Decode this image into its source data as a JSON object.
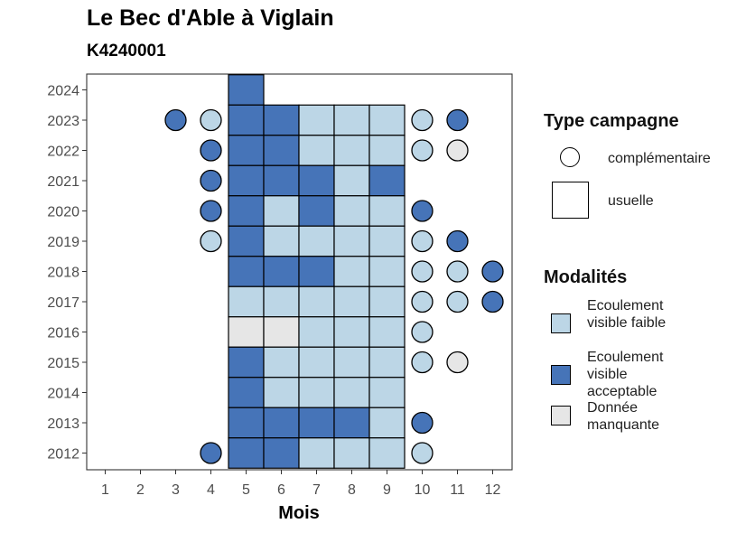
{
  "chart_data": {
    "type": "heatmap",
    "title": "Le Bec d'Able à Viglain",
    "subtitle": "K4240001",
    "xlabel": "Mois",
    "ylabel": "",
    "x_ticks": [
      "1",
      "2",
      "3",
      "4",
      "5",
      "6",
      "7",
      "8",
      "9",
      "10",
      "11",
      "12"
    ],
    "y_ticks": [
      "2012",
      "2013",
      "2014",
      "2015",
      "2016",
      "2017",
      "2018",
      "2019",
      "2020",
      "2021",
      "2022",
      "2023",
      "2024"
    ],
    "colors": {
      "faible": "#bcd6e6",
      "acceptable": "#4674b8",
      "manquante": "#e6e6e6"
    },
    "legend_shape": {
      "title": "Type campagne",
      "items": [
        {
          "key": "complementaire",
          "label": "complémentaire",
          "shape": "circle"
        },
        {
          "key": "usuelle",
          "label": "usuelle",
          "shape": "square"
        }
      ]
    },
    "legend_fill": {
      "title": "Modalités",
      "items": [
        {
          "key": "faible",
          "label": "Ecoulement visible faible"
        },
        {
          "key": "acceptable",
          "label": "Ecoulement visible acceptable"
        },
        {
          "key": "manquante",
          "label": "Donnée manquante"
        }
      ]
    },
    "points": [
      {
        "year": 2024,
        "month": 5,
        "type": "usuelle",
        "value": "acceptable"
      },
      {
        "year": 2023,
        "month": 3,
        "type": "complementaire",
        "value": "acceptable"
      },
      {
        "year": 2023,
        "month": 4,
        "type": "complementaire",
        "value": "faible"
      },
      {
        "year": 2023,
        "month": 5,
        "type": "usuelle",
        "value": "acceptable"
      },
      {
        "year": 2023,
        "month": 6,
        "type": "usuelle",
        "value": "acceptable"
      },
      {
        "year": 2023,
        "month": 7,
        "type": "usuelle",
        "value": "faible"
      },
      {
        "year": 2023,
        "month": 8,
        "type": "usuelle",
        "value": "faible"
      },
      {
        "year": 2023,
        "month": 9,
        "type": "usuelle",
        "value": "faible"
      },
      {
        "year": 2023,
        "month": 10,
        "type": "complementaire",
        "value": "faible"
      },
      {
        "year": 2023,
        "month": 11,
        "type": "complementaire",
        "value": "acceptable"
      },
      {
        "year": 2022,
        "month": 4,
        "type": "complementaire",
        "value": "acceptable"
      },
      {
        "year": 2022,
        "month": 5,
        "type": "usuelle",
        "value": "acceptable"
      },
      {
        "year": 2022,
        "month": 6,
        "type": "usuelle",
        "value": "acceptable"
      },
      {
        "year": 2022,
        "month": 7,
        "type": "usuelle",
        "value": "faible"
      },
      {
        "year": 2022,
        "month": 8,
        "type": "usuelle",
        "value": "faible"
      },
      {
        "year": 2022,
        "month": 9,
        "type": "usuelle",
        "value": "faible"
      },
      {
        "year": 2022,
        "month": 10,
        "type": "complementaire",
        "value": "faible"
      },
      {
        "year": 2022,
        "month": 11,
        "type": "complementaire",
        "value": "manquante"
      },
      {
        "year": 2021,
        "month": 4,
        "type": "complementaire",
        "value": "acceptable"
      },
      {
        "year": 2021,
        "month": 5,
        "type": "usuelle",
        "value": "acceptable"
      },
      {
        "year": 2021,
        "month": 6,
        "type": "usuelle",
        "value": "acceptable"
      },
      {
        "year": 2021,
        "month": 7,
        "type": "usuelle",
        "value": "acceptable"
      },
      {
        "year": 2021,
        "month": 8,
        "type": "usuelle",
        "value": "faible"
      },
      {
        "year": 2021,
        "month": 9,
        "type": "usuelle",
        "value": "acceptable"
      },
      {
        "year": 2020,
        "month": 4,
        "type": "complementaire",
        "value": "acceptable"
      },
      {
        "year": 2020,
        "month": 5,
        "type": "usuelle",
        "value": "acceptable"
      },
      {
        "year": 2020,
        "month": 6,
        "type": "usuelle",
        "value": "faible"
      },
      {
        "year": 2020,
        "month": 7,
        "type": "usuelle",
        "value": "acceptable"
      },
      {
        "year": 2020,
        "month": 8,
        "type": "usuelle",
        "value": "faible"
      },
      {
        "year": 2020,
        "month": 9,
        "type": "usuelle",
        "value": "faible"
      },
      {
        "year": 2020,
        "month": 10,
        "type": "complementaire",
        "value": "acceptable"
      },
      {
        "year": 2019,
        "month": 4,
        "type": "complementaire",
        "value": "faible"
      },
      {
        "year": 2019,
        "month": 5,
        "type": "usuelle",
        "value": "acceptable"
      },
      {
        "year": 2019,
        "month": 6,
        "type": "usuelle",
        "value": "faible"
      },
      {
        "year": 2019,
        "month": 7,
        "type": "usuelle",
        "value": "faible"
      },
      {
        "year": 2019,
        "month": 8,
        "type": "usuelle",
        "value": "faible"
      },
      {
        "year": 2019,
        "month": 9,
        "type": "usuelle",
        "value": "faible"
      },
      {
        "year": 2019,
        "month": 10,
        "type": "complementaire",
        "value": "faible"
      },
      {
        "year": 2019,
        "month": 11,
        "type": "complementaire",
        "value": "acceptable"
      },
      {
        "year": 2018,
        "month": 5,
        "type": "usuelle",
        "value": "acceptable"
      },
      {
        "year": 2018,
        "month": 6,
        "type": "usuelle",
        "value": "acceptable"
      },
      {
        "year": 2018,
        "month": 7,
        "type": "usuelle",
        "value": "acceptable"
      },
      {
        "year": 2018,
        "month": 8,
        "type": "usuelle",
        "value": "faible"
      },
      {
        "year": 2018,
        "month": 9,
        "type": "usuelle",
        "value": "faible"
      },
      {
        "year": 2018,
        "month": 10,
        "type": "complementaire",
        "value": "faible"
      },
      {
        "year": 2018,
        "month": 11,
        "type": "complementaire",
        "value": "faible"
      },
      {
        "year": 2018,
        "month": 12,
        "type": "complementaire",
        "value": "acceptable"
      },
      {
        "year": 2017,
        "month": 5,
        "type": "usuelle",
        "value": "faible"
      },
      {
        "year": 2017,
        "month": 6,
        "type": "usuelle",
        "value": "faible"
      },
      {
        "year": 2017,
        "month": 7,
        "type": "usuelle",
        "value": "faible"
      },
      {
        "year": 2017,
        "month": 8,
        "type": "usuelle",
        "value": "faible"
      },
      {
        "year": 2017,
        "month": 9,
        "type": "usuelle",
        "value": "faible"
      },
      {
        "year": 2017,
        "month": 10,
        "type": "complementaire",
        "value": "faible"
      },
      {
        "year": 2017,
        "month": 11,
        "type": "complementaire",
        "value": "faible"
      },
      {
        "year": 2017,
        "month": 12,
        "type": "complementaire",
        "value": "acceptable"
      },
      {
        "year": 2016,
        "month": 5,
        "type": "usuelle",
        "value": "manquante"
      },
      {
        "year": 2016,
        "month": 6,
        "type": "usuelle",
        "value": "manquante"
      },
      {
        "year": 2016,
        "month": 7,
        "type": "usuelle",
        "value": "faible"
      },
      {
        "year": 2016,
        "month": 8,
        "type": "usuelle",
        "value": "faible"
      },
      {
        "year": 2016,
        "month": 9,
        "type": "usuelle",
        "value": "faible"
      },
      {
        "year": 2016,
        "month": 10,
        "type": "complementaire",
        "value": "faible"
      },
      {
        "year": 2015,
        "month": 5,
        "type": "usuelle",
        "value": "acceptable"
      },
      {
        "year": 2015,
        "month": 6,
        "type": "usuelle",
        "value": "faible"
      },
      {
        "year": 2015,
        "month": 7,
        "type": "usuelle",
        "value": "faible"
      },
      {
        "year": 2015,
        "month": 8,
        "type": "usuelle",
        "value": "faible"
      },
      {
        "year": 2015,
        "month": 9,
        "type": "usuelle",
        "value": "faible"
      },
      {
        "year": 2015,
        "month": 10,
        "type": "complementaire",
        "value": "faible"
      },
      {
        "year": 2015,
        "month": 11,
        "type": "complementaire",
        "value": "manquante"
      },
      {
        "year": 2014,
        "month": 5,
        "type": "usuelle",
        "value": "acceptable"
      },
      {
        "year": 2014,
        "month": 6,
        "type": "usuelle",
        "value": "faible"
      },
      {
        "year": 2014,
        "month": 7,
        "type": "usuelle",
        "value": "faible"
      },
      {
        "year": 2014,
        "month": 8,
        "type": "usuelle",
        "value": "faible"
      },
      {
        "year": 2014,
        "month": 9,
        "type": "usuelle",
        "value": "faible"
      },
      {
        "year": 2013,
        "month": 5,
        "type": "usuelle",
        "value": "acceptable"
      },
      {
        "year": 2013,
        "month": 6,
        "type": "usuelle",
        "value": "acceptable"
      },
      {
        "year": 2013,
        "month": 7,
        "type": "usuelle",
        "value": "acceptable"
      },
      {
        "year": 2013,
        "month": 8,
        "type": "usuelle",
        "value": "acceptable"
      },
      {
        "year": 2013,
        "month": 9,
        "type": "usuelle",
        "value": "faible"
      },
      {
        "year": 2013,
        "month": 10,
        "type": "complementaire",
        "value": "acceptable"
      },
      {
        "year": 2012,
        "month": 4,
        "type": "complementaire",
        "value": "acceptable"
      },
      {
        "year": 2012,
        "month": 5,
        "type": "usuelle",
        "value": "acceptable"
      },
      {
        "year": 2012,
        "month": 6,
        "type": "usuelle",
        "value": "acceptable"
      },
      {
        "year": 2012,
        "month": 7,
        "type": "usuelle",
        "value": "faible"
      },
      {
        "year": 2012,
        "month": 8,
        "type": "usuelle",
        "value": "faible"
      },
      {
        "year": 2012,
        "month": 9,
        "type": "usuelle",
        "value": "faible"
      },
      {
        "year": 2012,
        "month": 10,
        "type": "complementaire",
        "value": "faible"
      }
    ]
  }
}
